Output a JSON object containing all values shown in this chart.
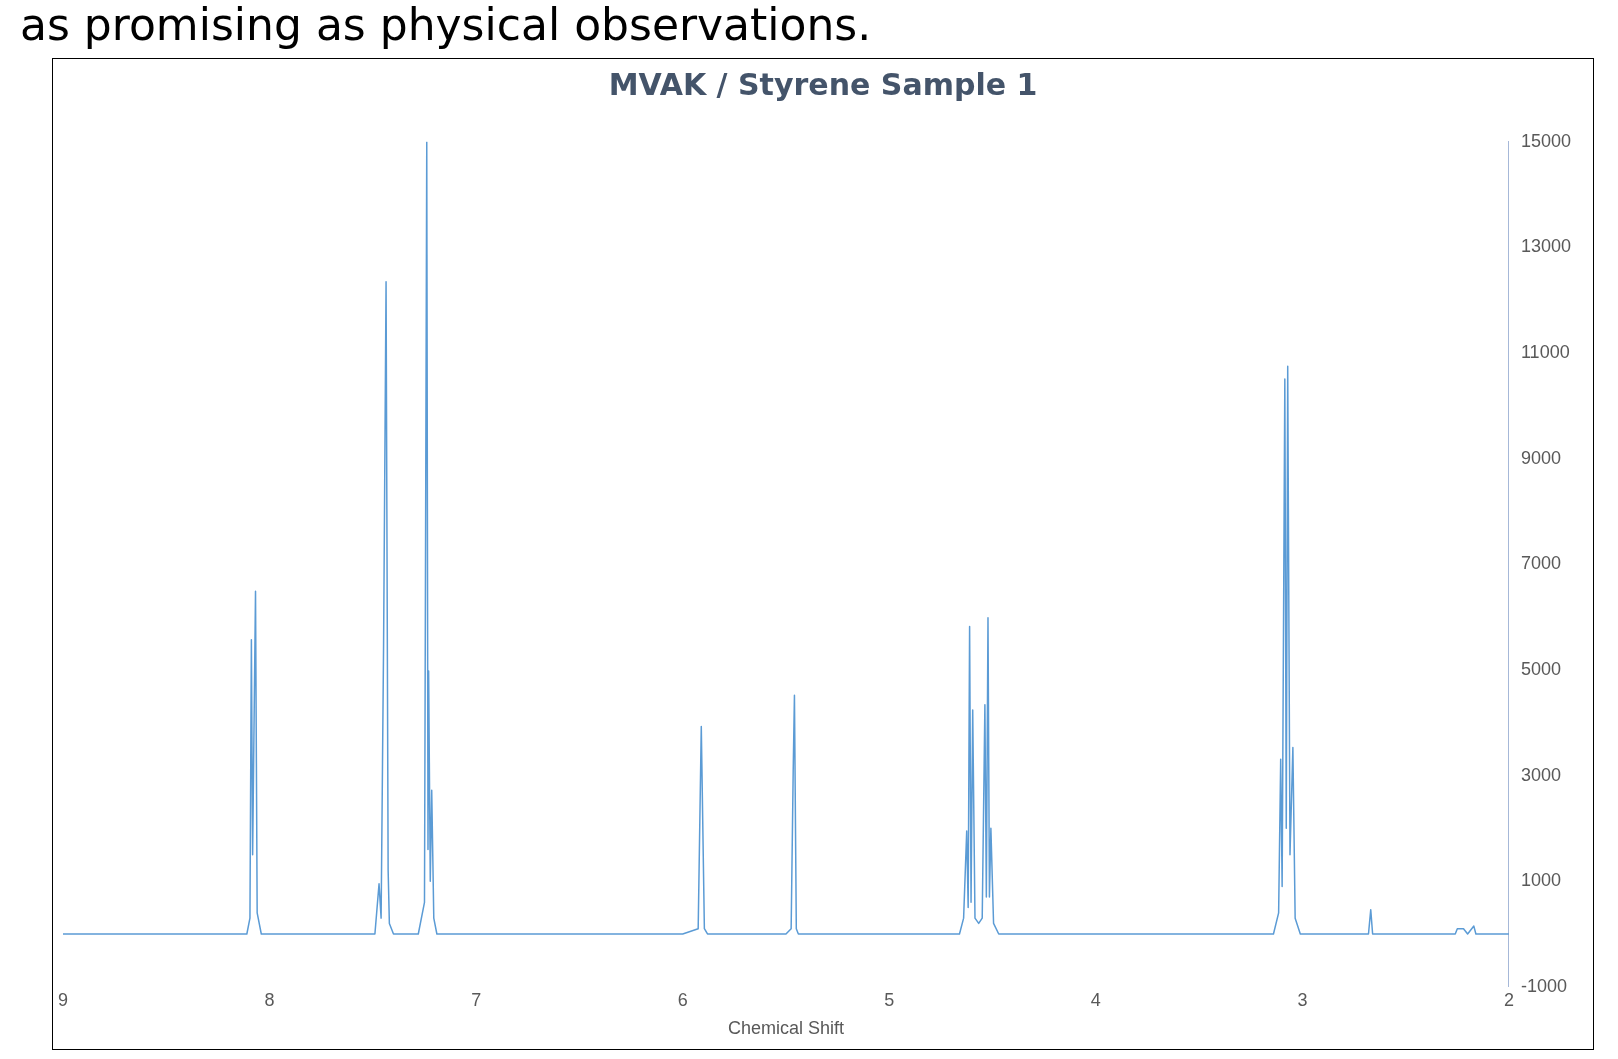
{
  "chart_data": {
    "type": "line",
    "title": "MVAK / Styrene Sample 1",
    "xlabel": "Chemical Shift",
    "annotations": [
      "as promising as physical observations."
    ],
    "x": [
      9,
      8.3,
      8.11,
      8.095,
      8.088,
      8.082,
      8.068,
      8.06,
      8.04,
      7.6,
      7.49,
      7.47,
      7.46,
      7.448,
      7.436,
      7.426,
      7.42,
      7.4,
      7.28,
      7.25,
      7.239,
      7.233,
      7.23,
      7.222,
      7.215,
      7.205,
      7.19,
      6,
      5.925,
      5.91,
      5.895,
      5.88,
      5.5,
      5.475,
      5.465,
      5.459,
      5.45,
      5.44,
      4.66,
      4.64,
      4.625,
      4.618,
      4.611,
      4.604,
      4.596,
      4.585,
      4.567,
      4.55,
      4.537,
      4.53,
      4.522,
      4.515,
      4.508,
      4.495,
      4.47,
      3.14,
      3.115,
      3.105,
      3.098,
      3.085,
      3.078,
      3.071,
      3.06,
      3.046,
      3.035,
      3.01,
      2.68,
      2.669,
      2.66,
      2.26,
      2.25,
      2.22,
      2.2,
      2.17,
      2.16,
      2
    ],
    "series": [
      {
        "color": "#5b9bd5",
        "values": [
          0,
          0,
          0,
          300,
          5570,
          1500,
          6490,
          400,
          0,
          0,
          0,
          950,
          300,
          5490,
          12350,
          1210,
          200,
          0,
          0,
          600,
          15000,
          1600,
          4980,
          1000,
          2720,
          300,
          0,
          0,
          100,
          3930,
          100,
          0,
          0,
          100,
          3090,
          4520,
          100,
          0,
          0,
          300,
          1950,
          500,
          5820,
          600,
          4240,
          300,
          200,
          300,
          4340,
          700,
          5990,
          700,
          2000,
          200,
          0,
          0,
          400,
          3310,
          900,
          10510,
          2000,
          10750,
          1500,
          3530,
          300,
          0,
          0,
          460,
          0,
          0,
          100,
          100,
          0,
          150,
          0,
          0
        ]
      }
    ],
    "xlim": [
      9,
      2
    ],
    "xticks": [
      9,
      8,
      7,
      6,
      5,
      4,
      3,
      2
    ],
    "ylim": [
      -1000,
      15000
    ],
    "yticks": [
      15000,
      13000,
      11000,
      9000,
      7000,
      5000,
      3000,
      1000,
      -1000
    ],
    "grid": false,
    "legend": false,
    "marker": "none",
    "line_style": "solid"
  }
}
